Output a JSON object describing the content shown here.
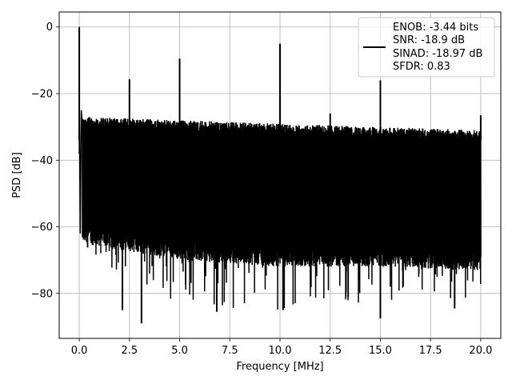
{
  "chart_data": {
    "type": "line",
    "title": "",
    "xlabel": "Frequency [MHz]",
    "ylabel": "PSD [dB]",
    "xlim": [
      -1.0,
      21.0
    ],
    "ylim": [
      -93.5,
      4.5
    ],
    "xticks": [
      0.0,
      2.5,
      5.0,
      7.5,
      10.0,
      12.5,
      15.0,
      17.5,
      20.0
    ],
    "xtick_labels": [
      "0.0",
      "2.5",
      "5.0",
      "7.5",
      "10.0",
      "12.5",
      "15.0",
      "17.5",
      "20.0"
    ],
    "yticks": [
      0,
      -20,
      -40,
      -60,
      -80
    ],
    "ytick_labels": [
      "0",
      "−20",
      "−40",
      "−60",
      "−80"
    ],
    "grid": true,
    "legend_position": "top-right",
    "series": [
      {
        "color": "#000000",
        "noise_band": {
          "x": [
            0.2,
            5.0,
            10.0,
            15.0,
            20.0
          ],
          "upper_db": [
            -27,
            -28,
            -29,
            -30,
            -31
          ],
          "lower_db": [
            -65,
            -70,
            -72,
            -72,
            -73
          ],
          "min_db": [
            -68,
            -84,
            -85,
            -83,
            -82
          ]
        },
        "spikes": [
          {
            "x": 0.0,
            "y": 0.0
          },
          {
            "x": 2.5,
            "y": -15.7
          },
          {
            "x": 5.0,
            "y": -9.5
          },
          {
            "x": 10.0,
            "y": -5.0
          },
          {
            "x": 12.5,
            "y": -26.0
          },
          {
            "x": 15.0,
            "y": -16.0
          },
          {
            "x": 20.0,
            "y": -26.5
          }
        ],
        "notches": [
          {
            "x": 2.15,
            "y": -85.0
          },
          {
            "x": 3.1,
            "y": -89.0
          },
          {
            "x": 6.85,
            "y": -85.5
          },
          {
            "x": 10.15,
            "y": -85.0
          },
          {
            "x": 15.0,
            "y": -87.5
          },
          {
            "x": 18.7,
            "y": -84.5
          }
        ]
      }
    ],
    "legend": {
      "lines": [
        "ENOB: -3.44 bits",
        "SNR: -18.9 dB",
        "SINAD: -18.97 dB",
        "SFDR: 0.83"
      ]
    }
  }
}
